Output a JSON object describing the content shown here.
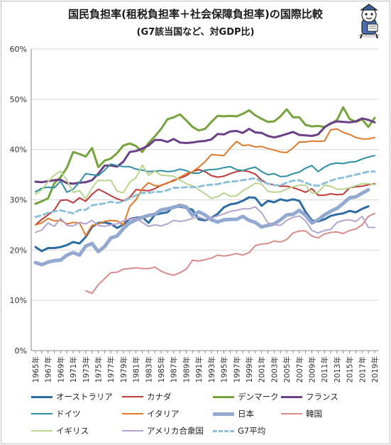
{
  "chart_data": {
    "type": "line",
    "title": "国民負担率(租税負担率＋社会保障負担率)の国際比較",
    "subtitle": "(G7該当国など、対GDP比)",
    "xlabel": "",
    "ylabel": "",
    "x": [
      1965,
      1966,
      1967,
      1968,
      1969,
      1970,
      1971,
      1972,
      1973,
      1974,
      1975,
      1976,
      1977,
      1978,
      1979,
      1980,
      1981,
      1982,
      1983,
      1984,
      1985,
      1986,
      1987,
      1988,
      1989,
      1990,
      1991,
      1992,
      1993,
      1994,
      1995,
      1996,
      1997,
      1998,
      1999,
      2000,
      2001,
      2002,
      2003,
      2004,
      2005,
      2006,
      2007,
      2008,
      2009,
      2010,
      2011,
      2012,
      2013,
      2014,
      2015,
      2016,
      2017,
      2018,
      2019
    ],
    "x_tick_labels": [
      "1965年",
      "1967年",
      "1969年",
      "1971年",
      "1973年",
      "1975年",
      "1977年",
      "1979年",
      "1981年",
      "1983年",
      "1985年",
      "1987年",
      "1989年",
      "1991年",
      "1993年",
      "1995年",
      "1997年",
      "1999年",
      "2001年",
      "2003年",
      "2005年",
      "2007年",
      "2009年",
      "2011年",
      "2013年",
      "2015年",
      "2017年",
      "2019年"
    ],
    "y_tick_labels": [
      "0%",
      "10%",
      "20%",
      "30%",
      "40%",
      "50%",
      "60%"
    ],
    "ylim": [
      0,
      60
    ],
    "grid": true,
    "legend_position": "bottom",
    "series": [
      {
        "name": "オーストラリア",
        "color": "#2e6ca4",
        "dash": false,
        "width": 3,
        "values": [
          20.6,
          19.8,
          20.4,
          20.4,
          20.6,
          21.0,
          21.6,
          21.3,
          22.6,
          24.6,
          25.4,
          25.5,
          25.2,
          24.4,
          25.1,
          26.2,
          26.4,
          26.6,
          25.4,
          27.0,
          27.3,
          27.5,
          28.7,
          28.6,
          28.4,
          28.0,
          26.1,
          25.9,
          26.4,
          27.2,
          28.5,
          29.1,
          29.3,
          29.8,
          30.5,
          30.4,
          28.8,
          29.8,
          29.5,
          30.1,
          29.8,
          30.1,
          29.8,
          27.6,
          25.9,
          25.7,
          26.1,
          26.8,
          27.1,
          27.3,
          27.8,
          27.5,
          28.2,
          28.7,
          null
        ]
      },
      {
        "name": "カナダ",
        "color": "#c0393b",
        "dash": false,
        "width": 2,
        "values": [
          25.0,
          26.1,
          27.0,
          28.0,
          29.9,
          30.0,
          29.4,
          30.4,
          29.7,
          31.1,
          32.1,
          31.5,
          30.8,
          30.2,
          29.8,
          30.5,
          32.0,
          31.9,
          31.8,
          32.2,
          32.9,
          33.3,
          33.9,
          34.3,
          34.8,
          35.6,
          36.0,
          35.6,
          34.8,
          34.5,
          34.7,
          35.2,
          35.6,
          35.8,
          35.6,
          35.1,
          33.9,
          33.2,
          33.0,
          32.7,
          32.7,
          32.4,
          32.0,
          31.5,
          32.2,
          30.9,
          30.9,
          31.2,
          31.0,
          31.1,
          32.4,
          32.6,
          32.7,
          33.0,
          33.2
        ]
      },
      {
        "name": "デンマーク",
        "color": "#77a33c",
        "dash": false,
        "width": 3,
        "values": [
          29.2,
          29.7,
          30.3,
          33.3,
          34.5,
          36.4,
          39.5,
          39.1,
          38.6,
          40.3,
          36.5,
          37.8,
          38.2,
          39.3,
          40.8,
          41.2,
          40.7,
          39.5,
          41.3,
          42.6,
          44.1,
          46.0,
          46.4,
          47.0,
          45.8,
          44.5,
          43.8,
          44.1,
          45.5,
          46.7,
          46.6,
          46.7,
          46.6,
          47.1,
          47.8,
          46.8,
          46.1,
          45.5,
          45.6,
          46.6,
          48.0,
          46.4,
          46.4,
          44.9,
          44.6,
          44.7,
          44.5,
          45.1,
          45.9,
          48.4,
          46.1,
          45.5,
          46.0,
          44.5,
          46.3
        ]
      },
      {
        "name": "フランス",
        "color": "#6b3f86",
        "dash": false,
        "width": 3,
        "values": [
          33.6,
          33.5,
          33.7,
          33.9,
          34.0,
          33.3,
          33.2,
          33.4,
          33.5,
          33.9,
          35.2,
          36.8,
          36.8,
          36.6,
          37.6,
          39.5,
          39.7,
          40.2,
          40.8,
          41.9,
          41.9,
          41.5,
          42.1,
          41.4,
          41.3,
          41.4,
          41.6,
          41.7,
          42.0,
          43.1,
          43.0,
          43.6,
          43.7,
          43.3,
          44.1,
          43.4,
          43.3,
          42.7,
          42.4,
          42.7,
          43.1,
          43.5,
          42.9,
          42.8,
          42.7,
          43.0,
          44.4,
          45.2,
          45.6,
          45.5,
          45.4,
          45.6,
          46.2,
          45.9,
          45.4
        ]
      },
      {
        "name": "ドイツ",
        "color": "#2e8fa3",
        "dash": false,
        "width": 2,
        "values": [
          31.6,
          32.3,
          32.5,
          32.4,
          33.7,
          31.5,
          32.1,
          33.5,
          35.2,
          35.0,
          34.8,
          35.9,
          37.1,
          36.8,
          36.6,
          36.6,
          36.1,
          35.9,
          35.6,
          35.7,
          35.8,
          35.6,
          35.7,
          36.1,
          35.8,
          35.3,
          35.3,
          35.9,
          36.0,
          36.1,
          36.4,
          36.6,
          36.0,
          35.8,
          36.2,
          36.5,
          35.6,
          35.0,
          35.2,
          34.6,
          34.7,
          35.2,
          35.5,
          36.3,
          36.8,
          35.6,
          36.5,
          37.1,
          37.3,
          37.2,
          37.5,
          37.6,
          38.1,
          38.5,
          38.8
        ]
      },
      {
        "name": "イタリア",
        "color": "#e07b2c",
        "dash": false,
        "width": 2,
        "values": [
          25.0,
          25.4,
          26.3,
          25.8,
          25.9,
          25.2,
          25.5,
          25.4,
          22.9,
          24.9,
          25.2,
          25.7,
          25.9,
          25.8,
          25.0,
          28.7,
          30.0,
          32.2,
          33.4,
          32.8,
          32.8,
          33.4,
          33.7,
          34.5,
          35.2,
          35.6,
          36.5,
          37.6,
          39.0,
          38.9,
          38.8,
          40.3,
          41.6,
          40.8,
          40.9,
          40.5,
          40.6,
          40.2,
          39.9,
          39.5,
          39.4,
          40.3,
          41.5,
          41.5,
          41.7,
          41.6,
          41.7,
          43.9,
          44.1,
          43.4,
          43.0,
          42.4,
          42.1,
          42.1,
          42.4
        ]
      },
      {
        "name": "日本",
        "color": "#93a9cf",
        "dash": false,
        "width": 5,
        "values": [
          17.5,
          17.1,
          17.6,
          17.9,
          18.0,
          19.0,
          19.5,
          19.0,
          20.8,
          21.3,
          19.7,
          20.7,
          22.4,
          22.8,
          24.3,
          25.4,
          26.0,
          26.5,
          26.9,
          27.1,
          28.0,
          28.2,
          28.5,
          28.9,
          28.6,
          26.9,
          27.6,
          27.0,
          26.0,
          25.6,
          26.0,
          26.1,
          26.1,
          26.7,
          25.9,
          25.5,
          24.6,
          24.9,
          25.2,
          26.0,
          27.0,
          27.1,
          27.9,
          26.9,
          25.4,
          26.0,
          27.0,
          27.7,
          28.3,
          29.3,
          30.4,
          30.6,
          31.3,
          32.0,
          null
        ]
      },
      {
        "name": "韓国",
        "color": "#d98b8b",
        "dash": false,
        "width": 2,
        "values": [
          null,
          null,
          null,
          null,
          null,
          null,
          null,
          null,
          11.9,
          11.4,
          13.1,
          14.3,
          15.5,
          15.6,
          16.2,
          16.3,
          16.5,
          16.3,
          16.3,
          16.6,
          15.8,
          15.3,
          15.0,
          15.5,
          16.2,
          18.0,
          17.8,
          18.1,
          18.4,
          19.0,
          18.8,
          19.0,
          19.3,
          19.0,
          19.5,
          20.9,
          21.2,
          21.3,
          21.8,
          21.6,
          22.1,
          23.4,
          23.8,
          23.8,
          22.8,
          22.4,
          23.2,
          23.5,
          23.6,
          23.3,
          23.9,
          24.2,
          25.0,
          26.7,
          27.3
        ]
      },
      {
        "name": "イギリス",
        "color": "#b9d58e",
        "dash": false,
        "width": 2,
        "values": [
          31.1,
          32.0,
          33.6,
          34.9,
          35.7,
          33.9,
          31.5,
          31.8,
          30.2,
          32.4,
          33.9,
          33.8,
          33.9,
          31.7,
          31.4,
          33.5,
          34.4,
          36.9,
          34.9,
          35.7,
          34.9,
          34.8,
          34.7,
          33.9,
          33.2,
          32.8,
          32.0,
          31.2,
          30.3,
          30.6,
          31.4,
          30.7,
          30.8,
          31.8,
          32.5,
          33.3,
          33.1,
          31.7,
          31.5,
          31.6,
          32.1,
          32.6,
          32.9,
          32.9,
          31.3,
          31.5,
          32.9,
          32.7,
          32.1,
          32.1,
          32.4,
          32.8,
          33.2,
          33.2,
          33.0
        ]
      },
      {
        "name": "アメリカ合衆国",
        "color": "#b4a4cf",
        "dash": false,
        "width": 2,
        "values": [
          23.5,
          24.0,
          25.4,
          24.7,
          26.3,
          24.9,
          24.8,
          25.5,
          25.2,
          25.9,
          24.9,
          24.7,
          25.0,
          25.2,
          25.8,
          26.2,
          26.3,
          25.5,
          24.7,
          25.0,
          24.8,
          25.2,
          25.9,
          25.7,
          25.9,
          26.3,
          26.6,
          26.1,
          26.4,
          26.8,
          27.2,
          27.7,
          27.9,
          28.2,
          28.2,
          28.6,
          27.4,
          25.4,
          25.1,
          24.9,
          25.9,
          26.5,
          26.8,
          25.8,
          23.9,
          23.4,
          23.9,
          24.1,
          25.5,
          25.9,
          26.0,
          25.7,
          26.7,
          24.5,
          24.5
        ]
      },
      {
        "name": "G7平均",
        "color": "#8fc1d9",
        "dash": true,
        "width": 3,
        "values": [
          26.6,
          26.9,
          27.4,
          27.7,
          27.9,
          27.6,
          27.3,
          28.0,
          28.0,
          28.9,
          29.1,
          29.3,
          29.6,
          29.4,
          29.7,
          30.3,
          30.9,
          31.4,
          31.4,
          31.6,
          31.6,
          31.9,
          32.4,
          32.4,
          32.5,
          32.5,
          32.6,
          32.9,
          33.0,
          33.1,
          33.4,
          33.6,
          33.7,
          33.9,
          34.1,
          34.3,
          33.6,
          33.2,
          32.9,
          32.9,
          33.4,
          33.8,
          33.9,
          33.4,
          32.9,
          32.8,
          33.3,
          33.8,
          34.2,
          34.4,
          34.7,
          35.0,
          35.3,
          35.6,
          35.6
        ]
      }
    ]
  },
  "legend_rows": [
    [
      "オーストラリア",
      "カナダ",
      "デンマーク",
      "フランス"
    ],
    [
      "ドイツ",
      "イタリア",
      "日本",
      "韓国"
    ],
    [
      "イギリス",
      "アメリカ合衆国",
      "G7平均"
    ]
  ]
}
